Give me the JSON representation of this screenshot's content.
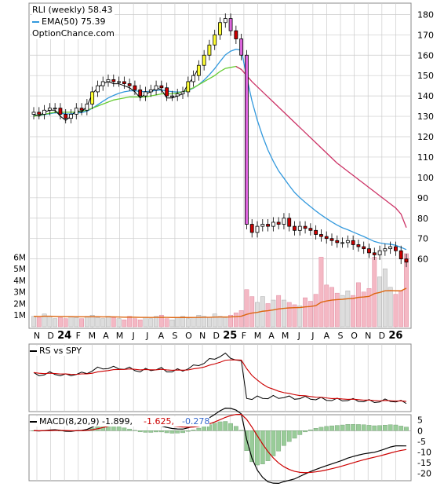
{
  "colors": {
    "up_fill": "#ffffff",
    "down_fill": "#cc0000",
    "big_up_fill": "#ffff33",
    "big_down_fill": "#dd66dd",
    "ema20": "#3399dd",
    "ema50": "#66cc33",
    "ema100": "#cc3366",
    "vol_up": "#dddddd",
    "vol_down": "#f4b8c4",
    "vol_avg": "#dd6611",
    "rs_line": "#000000",
    "rs_ma": "#cc0000",
    "macd_line": "#000000",
    "signal_line": "#cc0000",
    "hist_pos": "#99cc99",
    "hist_neg": "#99cc99",
    "grid": "#cccccc",
    "axis": "#000000"
  },
  "legend": {
    "line1": "RLI (weekly) 58.43",
    "line2": "EMA(50) 75.39",
    "line3": "OptionChance.com"
  },
  "rs_panel": {
    "label": "RS vs SPY"
  },
  "macd_panel": {
    "label_prefix": "MACD(8,20,9) -1.899,",
    "value2": "-1.625,",
    "value3": "-0.278"
  },
  "chart_data": [
    {
      "type": "candlestick",
      "title": "RLI (weekly)",
      "ylim": [
        56,
        184
      ],
      "y_ticks": [
        "60",
        "70",
        "80",
        "90",
        "100",
        "110",
        "120",
        "130",
        "140",
        "150",
        "160",
        "170",
        "180"
      ],
      "x_labels": [
        "N",
        "D",
        "24",
        "F",
        "M",
        "A",
        "M",
        "J",
        "J",
        "A",
        "S",
        "O",
        "N",
        "D",
        "25",
        "F",
        "M",
        "A",
        "M",
        "J",
        "J",
        "A",
        "S",
        "O",
        "N",
        "D",
        "26"
      ],
      "close_weekly": [
        132,
        131,
        133,
        134,
        134,
        131,
        129,
        131,
        134,
        133,
        136,
        142,
        145,
        147,
        148,
        147,
        147,
        146,
        145,
        143,
        140,
        142,
        143,
        145,
        144,
        140,
        140,
        141,
        142,
        147,
        150,
        155,
        160,
        165,
        170,
        176,
        178,
        172,
        168,
        160,
        77,
        73,
        76,
        77,
        76,
        78,
        77,
        80,
        76,
        74,
        76,
        75,
        74,
        72,
        71,
        70,
        69,
        68,
        68,
        69,
        67,
        66,
        65,
        63,
        62,
        64,
        65,
        66,
        64,
        60,
        58.43
      ],
      "series": [
        {
          "name": "EMA(50)",
          "values": [
            130,
            130.5,
            131,
            131.5,
            132,
            132,
            132,
            132,
            132,
            132.5,
            133,
            134,
            135,
            136,
            137,
            138,
            138.5,
            139,
            139.5,
            139.5,
            139.5,
            139.5,
            140,
            140.5,
            141,
            141,
            141,
            141.5,
            142,
            143,
            144,
            145.5,
            147,
            148.5,
            150,
            152,
            153.5,
            154,
            154.5,
            153,
            150,
            147,
            144.5,
            142,
            139.5,
            137,
            134.5,
            132,
            129.5,
            127,
            124.5,
            122,
            119.5,
            117,
            114.5,
            112,
            109.5,
            107,
            105,
            103,
            101,
            99,
            97,
            95,
            93,
            91,
            89,
            87,
            85,
            82,
            75.39
          ]
        }
      ]
    },
    {
      "type": "bar",
      "title": "Volume",
      "ylim": [
        0,
        6500000
      ],
      "y_ticks": [
        "1M",
        "2M",
        "3M",
        "4M",
        "5M",
        "6M"
      ]
    },
    {
      "type": "line",
      "title": "RS vs SPY"
    },
    {
      "type": "bar",
      "title": "MACD(8,20,9)",
      "ylim": [
        -22,
        6
      ],
      "y_ticks": [
        "5",
        "0",
        "-5",
        "-10",
        "-15",
        "-20"
      ],
      "values": [
        -1.899,
        -1.625,
        -0.278
      ]
    }
  ]
}
